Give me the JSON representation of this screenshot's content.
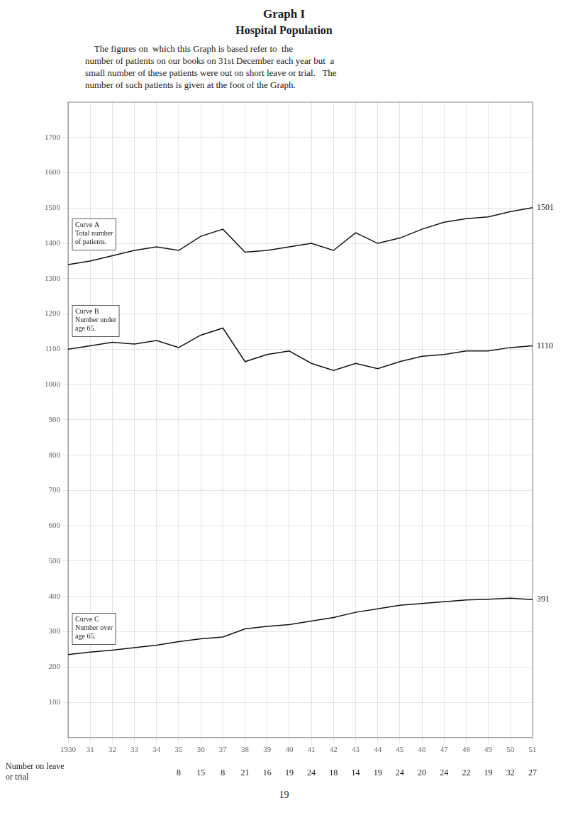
{
  "chart_data": {
    "type": "line",
    "title": "Graph I",
    "subtitle": "Hospital Population",
    "description": [
      "    The figures on  which this Graph is based refer to  the",
      "number of patients on our books on 31st December each year but  a",
      "small number of these patients were out on short leave or trial.   The",
      "number of such patients is given at the foot of the Graph."
    ],
    "x": [
      1930,
      1931,
      1932,
      1933,
      1934,
      1935,
      1936,
      1937,
      1938,
      1939,
      1940,
      1941,
      1942,
      1943,
      1944,
      1945,
      1946,
      1947,
      1948,
      1949,
      1950,
      1951
    ],
    "xlim": [
      1930,
      1951
    ],
    "xticks": [
      1930,
      {
        "value": 1931,
        "label": "31"
      },
      {
        "value": 1932,
        "label": "32"
      },
      {
        "value": 1933,
        "label": "33"
      },
      {
        "value": 1934,
        "label": "34"
      },
      {
        "value": 1935,
        "label": "35"
      },
      {
        "value": 1936,
        "label": "36"
      },
      {
        "value": 1937,
        "label": "37"
      },
      {
        "value": 1938,
        "label": "38"
      },
      {
        "value": 1939,
        "label": "39"
      },
      {
        "value": 1940,
        "label": "40"
      },
      {
        "value": 1941,
        "label": "41"
      },
      {
        "value": 1942,
        "label": "42"
      },
      {
        "value": 1943,
        "label": "43"
      },
      {
        "value": 1944,
        "label": "44"
      },
      {
        "value": 1945,
        "label": "45"
      },
      {
        "value": 1946,
        "label": "46"
      },
      {
        "value": 1947,
        "label": "47"
      },
      {
        "value": 1948,
        "label": "48"
      },
      {
        "value": 1949,
        "label": "49"
      },
      {
        "value": 1950,
        "label": "50"
      },
      {
        "value": 1951,
        "label": "51"
      }
    ],
    "ylim": [
      0,
      1800
    ],
    "yticks": [
      100,
      200,
      300,
      400,
      500,
      600,
      700,
      800,
      900,
      1000,
      1100,
      1200,
      1300,
      1400,
      1500,
      1600,
      1700
    ],
    "grid": true,
    "series": [
      {
        "name": "Curve A",
        "annotation": "Total number\nof patients.",
        "end_label": "1501",
        "color": "#111111",
        "values": [
          1340,
          1350,
          1365,
          1380,
          1390,
          1380,
          1420,
          1440,
          1375,
          1380,
          1390,
          1400,
          1380,
          1430,
          1400,
          1415,
          1440,
          1460,
          1470,
          1475,
          1490,
          1501
        ]
      },
      {
        "name": "Curve B",
        "annotation": "Number under\nage 65.",
        "end_label": "1110",
        "color": "#111111",
        "values": [
          1100,
          1110,
          1120,
          1115,
          1125,
          1105,
          1140,
          1160,
          1065,
          1085,
          1095,
          1060,
          1040,
          1060,
          1045,
          1065,
          1080,
          1085,
          1095,
          1095,
          1105,
          1110
        ]
      },
      {
        "name": "Curve C",
        "annotation": "Number over\nage 65.",
        "end_label": "391",
        "color": "#111111",
        "values": [
          235,
          242,
          248,
          255,
          262,
          272,
          280,
          285,
          308,
          315,
          320,
          330,
          340,
          355,
          365,
          375,
          380,
          385,
          390,
          392,
          395,
          391
        ]
      }
    ],
    "footer": {
      "label": "Number on leave\nor trial",
      "x": [
        1935,
        1936,
        1937,
        1938,
        1939,
        1940,
        1941,
        1942,
        1943,
        1944,
        1945,
        1946,
        1947,
        1948,
        1949,
        1950,
        1951
      ],
      "values": [
        8,
        15,
        8,
        21,
        16,
        19,
        24,
        18,
        14,
        19,
        24,
        20,
        24,
        22,
        19,
        32,
        27
      ]
    },
    "page_number": "19"
  }
}
